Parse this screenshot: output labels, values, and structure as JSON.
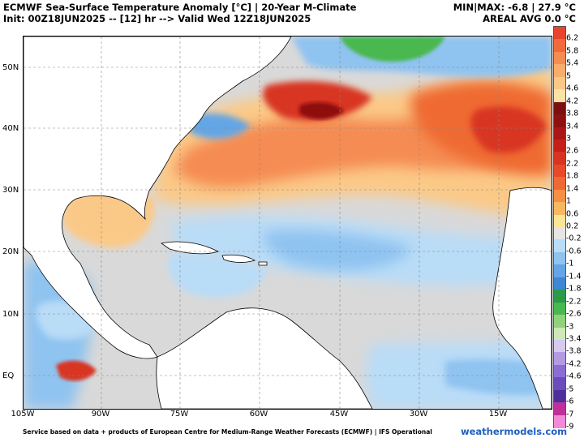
{
  "header": {
    "title": "ECMWF Sea-Surface Temperature Anomaly [°C] | 20-Year M-Climate",
    "init": "Init: 00Z18JUN2025 -- [12] hr --> Valid Wed 12Z18JUN2025",
    "minmax": "MIN|MAX: -6.8 | 27.9 °C",
    "areal": "AREAL AVG 0.0 °C"
  },
  "lat_labels": [
    "50N",
    "40N",
    "30N",
    "20N",
    "10N",
    "EQ"
  ],
  "lon_labels": [
    "105W",
    "90W",
    "75W",
    "60W",
    "45W",
    "30W",
    "15W"
  ],
  "colorbar": {
    "labels": [
      "6.2",
      "5.8",
      "5.4",
      "5",
      "4.6",
      "4.2",
      "3.8",
      "3.4",
      "3",
      "2.6",
      "2.2",
      "1.8",
      "1.4",
      "1",
      "0.6",
      "0.2",
      "-0.2",
      "-0.6",
      "-1",
      "-1.4",
      "-1.8",
      "-2.2",
      "-2.6",
      "-3",
      "-3.4",
      "-3.8",
      "-4.2",
      "-4.6",
      "-5",
      "-6",
      "-7",
      "-9"
    ],
    "colors": [
      "#e8452e",
      "#f06a3c",
      "#f58c52",
      "#f9ad6a",
      "#fbc987",
      "#fde1a6",
      "#7a0f10",
      "#8e1111",
      "#a81717",
      "#c41f1a",
      "#d83420",
      "#e64a28",
      "#ef6a32",
      "#f58f45",
      "#f9b85e",
      "#fde598",
      "#e5e5e5",
      "#b9dcf7",
      "#8fc3f0",
      "#63a6e6",
      "#3f86d6",
      "#2c9a4a",
      "#48b84f",
      "#8fd27a",
      "#cfe8b8",
      "#d7c9ef",
      "#b39ae3",
      "#8c6dd6",
      "#6d4bbd",
      "#4b2f9c",
      "#c12f9c",
      "#f28ad8"
    ]
  },
  "footer": {
    "credit": "Service based on data + products of European Centre for Medium-Range Weather Forecasts (ECMWF) | IFS Operational",
    "brand": "weathermodels.com"
  }
}
